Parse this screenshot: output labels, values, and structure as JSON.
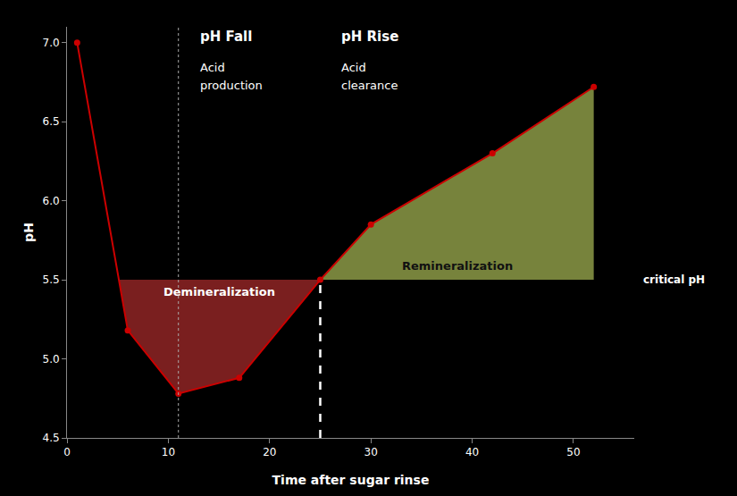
{
  "chart_data": {
    "type": "line",
    "xlabel": "Time after sugar rinse",
    "ylabel": "pH",
    "x": [
      1,
      6,
      11,
      17,
      25,
      30,
      42,
      52
    ],
    "values": [
      7.0,
      5.18,
      4.78,
      4.88,
      5.5,
      5.85,
      6.3,
      6.72
    ],
    "color": "#cc0000",
    "marker": "circle",
    "xlim": [
      0,
      56
    ],
    "ylim": [
      4.5,
      7.1
    ],
    "xticks": [
      0,
      10,
      20,
      30,
      40,
      50
    ],
    "yticks": [
      4.5,
      {
        "value": 5.0,
        "label": "5.0"
      },
      5.5,
      {
        "value": 6.0,
        "label": "6.0"
      },
      6.5,
      {
        "value": 7.0,
        "label": "7.0"
      }
    ],
    "grid": false,
    "threshold": {
      "value": 5.5,
      "label": "critical pH"
    },
    "areas": [
      {
        "side": "below",
        "label": "Demineralization",
        "color": "#cc3333"
      },
      {
        "side": "above",
        "label": "Remineralization",
        "color": "#aabb55"
      }
    ],
    "phases": [
      {
        "x": 11,
        "labels": [
          "pH Fall",
          "Acid",
          "production"
        ]
      },
      {
        "x": 25,
        "labels": [
          "pH Rise",
          "Acid",
          "clearance"
        ]
      }
    ]
  }
}
